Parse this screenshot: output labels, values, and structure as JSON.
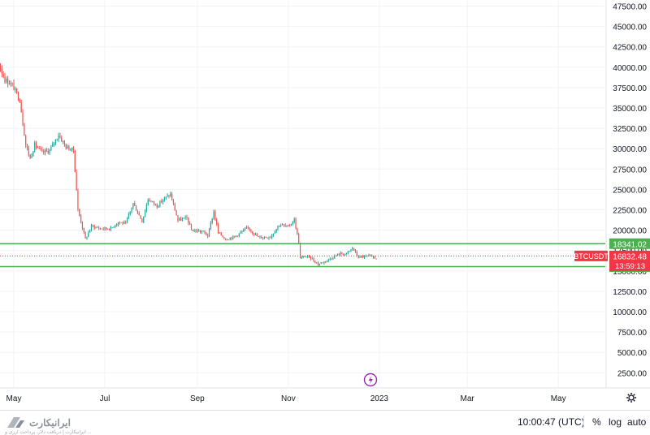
{
  "chart_data": {
    "type": "candlestick",
    "symbol": "BTCUSDT",
    "y_axis": {
      "min": 0,
      "max": 48000,
      "tick_labels": [
        "47500.00",
        "45000.00",
        "42500.00",
        "40000.00",
        "37500.00",
        "35000.00",
        "32500.00",
        "30000.00",
        "27500.00",
        "25000.00",
        "22500.00",
        "20000.00",
        "17500.00",
        "15000.00",
        "12500.00",
        "10000.00",
        "7500.00",
        "5000.00",
        "2500.00"
      ],
      "tick_values": [
        47500,
        45000,
        42500,
        40000,
        37500,
        35000,
        32500,
        30000,
        27500,
        25000,
        22500,
        20000,
        17500,
        15000,
        12500,
        10000,
        7500,
        5000,
        2500
      ]
    },
    "x_axis": {
      "tick_labels": [
        "May",
        "Jul",
        "Sep",
        "Nov",
        "2023",
        "Mar",
        "May"
      ]
    },
    "grid": true,
    "price_path": [
      [
        "2022-04-01",
        43500
      ],
      [
        "2022-04-05",
        41500
      ],
      [
        "2022-04-10",
        40000
      ],
      [
        "2022-04-15",
        39500
      ],
      [
        "2022-04-20",
        40800
      ],
      [
        "2022-04-25",
        38500
      ],
      [
        "2022-04-30",
        37800
      ],
      [
        "2022-05-05",
        36000
      ],
      [
        "2022-05-09",
        30500
      ],
      [
        "2022-05-12",
        28800
      ],
      [
        "2022-05-15",
        30500
      ],
      [
        "2022-05-20",
        29500
      ],
      [
        "2022-05-25",
        29800
      ],
      [
        "2022-05-31",
        31700
      ],
      [
        "2022-06-05",
        30200
      ],
      [
        "2022-06-10",
        29800
      ],
      [
        "2022-06-13",
        22500
      ],
      [
        "2022-06-18",
        18900
      ],
      [
        "2022-06-22",
        20500
      ],
      [
        "2022-06-28",
        20200
      ],
      [
        "2022-07-05",
        20200
      ],
      [
        "2022-07-10",
        21000
      ],
      [
        "2022-07-15",
        20800
      ],
      [
        "2022-07-20",
        23300
      ],
      [
        "2022-07-26",
        21100
      ],
      [
        "2022-07-30",
        23800
      ],
      [
        "2022-08-05",
        23000
      ],
      [
        "2022-08-10",
        23900
      ],
      [
        "2022-08-14",
        24400
      ],
      [
        "2022-08-19",
        21200
      ],
      [
        "2022-08-25",
        21500
      ],
      [
        "2022-08-28",
        20000
      ],
      [
        "2022-09-05",
        19800
      ],
      [
        "2022-09-08",
        19300
      ],
      [
        "2022-09-12",
        22300
      ],
      [
        "2022-09-15",
        19700
      ],
      [
        "2022-09-20",
        18900
      ],
      [
        "2022-09-26",
        19200
      ],
      [
        "2022-10-05",
        20300
      ],
      [
        "2022-10-12",
        19100
      ],
      [
        "2022-10-20",
        19200
      ],
      [
        "2022-10-26",
        20700
      ],
      [
        "2022-11-01",
        20400
      ],
      [
        "2022-11-05",
        21300
      ],
      [
        "2022-11-08",
        18500
      ],
      [
        "2022-11-09",
        16500
      ],
      [
        "2022-11-12",
        16800
      ],
      [
        "2022-11-16",
        16600
      ],
      [
        "2022-11-21",
        15800
      ],
      [
        "2022-11-28",
        16400
      ],
      [
        "2022-12-05",
        17100
      ],
      [
        "2022-12-10",
        17100
      ],
      [
        "2022-12-14",
        17800
      ],
      [
        "2022-12-18",
        16700
      ],
      [
        "2022-12-26",
        16800
      ],
      [
        "2022-12-29",
        16600
      ],
      [
        "2022-12-31",
        16600
      ]
    ],
    "horizontal_lines": [
      {
        "value": 18341.02,
        "label": "18341.02",
        "color": "#4caf50"
      },
      {
        "value": 15525.61,
        "label": "15525.61",
        "color": "#4caf50"
      }
    ],
    "current_price": {
      "value": 16832.48,
      "label": "16832.48",
      "countdown": "13:59:13",
      "color": "#f23645"
    },
    "up_color": "#26a69a",
    "down_color": "#ef5350"
  },
  "bottom_bar": {
    "logo_text": "ایرانیکارت",
    "logo_sub": "ایرانیکارت | دریافت دلار، پرداخت ارزی و ...",
    "clock": "10:00:47 (UTC)",
    "percent_label": "%",
    "log_label": "log",
    "auto_label": "auto"
  },
  "icons": {
    "settings": "gear-icon",
    "event": "lightning-icon",
    "logo": "iranicard-logo-icon"
  }
}
